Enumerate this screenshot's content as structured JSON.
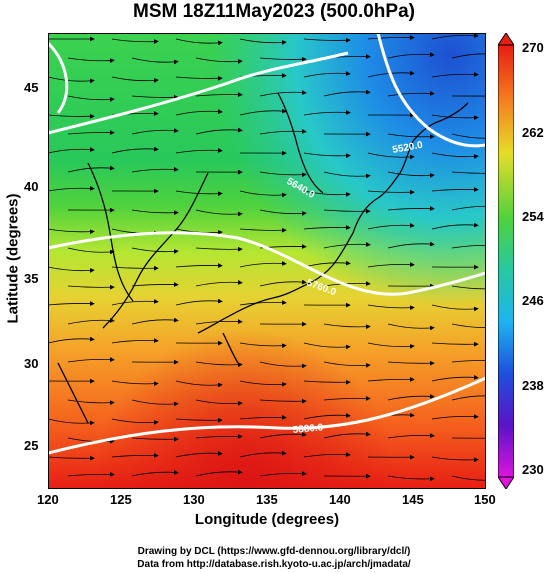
{
  "title": "MSM 18Z11May2023 (500.0hPa)",
  "xaxis": {
    "label": "Longitude (degrees)",
    "ticks": [
      "120",
      "125",
      "130",
      "135",
      "140",
      "145",
      "150"
    ]
  },
  "yaxis": {
    "label": "Latitude  (degrees)",
    "ticks": [
      "45",
      "40",
      "35",
      "30",
      "25"
    ]
  },
  "colorbar": {
    "ticks": [
      "270",
      "262",
      "254",
      "246",
      "238",
      "230"
    ]
  },
  "contour_labels": [
    "5520.0",
    "5640.0",
    "5760.0",
    "5880.0"
  ],
  "credits": {
    "line1": "Drawing by DCL (https://www.gfd-dennou.org/library/dcl/)",
    "line2": "Data from http://database.rish.kyoto-u.ac.jp/arch/jmadata/"
  },
  "colors": {
    "warm": "#e8281e",
    "mid": "#22c832",
    "cold": "#1e6ee6",
    "contour": "#ffffff"
  }
}
